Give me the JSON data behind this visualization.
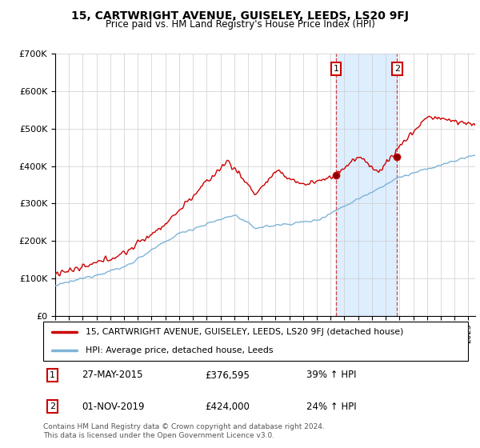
{
  "title": "15, CARTWRIGHT AVENUE, GUISELEY, LEEDS, LS20 9FJ",
  "subtitle": "Price paid vs. HM Land Registry's House Price Index (HPI)",
  "legend_line1": "15, CARTWRIGHT AVENUE, GUISELEY, LEEDS, LS20 9FJ (detached house)",
  "legend_line2": "HPI: Average price, detached house, Leeds",
  "footnote": "Contains HM Land Registry data © Crown copyright and database right 2024.\nThis data is licensed under the Open Government Licence v3.0.",
  "sale1_date": "27-MAY-2015",
  "sale1_price": "£376,595",
  "sale1_pct": "39% ↑ HPI",
  "sale2_date": "01-NOV-2019",
  "sale2_price": "£424,000",
  "sale2_pct": "24% ↑ HPI",
  "sale1_year": 2015.4,
  "sale2_year": 2019.83,
  "sale1_val": 376595,
  "sale2_val": 424000,
  "red_color": "#cc0000",
  "blue_color": "#7eb4d8",
  "shade_color": "#ddeeff",
  "ylim_max": 700000,
  "yticks": [
    0,
    100000,
    200000,
    300000,
    400000,
    500000,
    600000,
    700000
  ],
  "ytick_labels": [
    "£0",
    "£100K",
    "£200K",
    "£300K",
    "£400K",
    "£500K",
    "£600K",
    "£700K"
  ],
  "xmin": 1995,
  "xmax": 2025.5
}
